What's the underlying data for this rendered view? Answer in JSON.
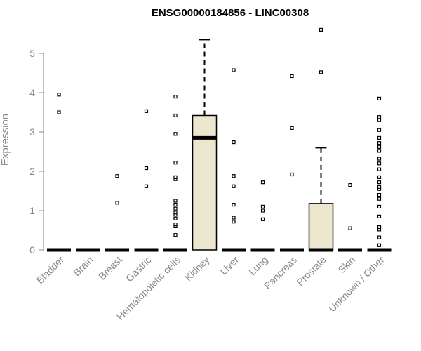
{
  "chart_data": {
    "type": "box",
    "title": "ENSG00000184856 - LINC00308",
    "xlabel": "",
    "ylabel": "Expression",
    "ylim": [
      0,
      5.6
    ],
    "yticks": [
      "0",
      "1",
      "2",
      "3",
      "4",
      "5"
    ],
    "grid": false,
    "colors": {
      "box_fill": "#ede6cf",
      "stroke": "#000000",
      "axis_text": "#888888"
    },
    "categories": [
      "Bladder",
      "Brain",
      "Breast",
      "Gastric",
      "Hematopoietic cells",
      "Kidney",
      "Liver",
      "Lung",
      "Pancreas",
      "Prostate",
      "Skin",
      "Unknown / Other"
    ],
    "boxes": [
      {
        "q1": 0,
        "median": 0,
        "q3": 0,
        "whisker_low": 0,
        "whisker_high": 0,
        "outliers": [
          3.5,
          3.95
        ]
      },
      {
        "q1": 0,
        "median": 0,
        "q3": 0,
        "whisker_low": 0,
        "whisker_high": 0,
        "outliers": []
      },
      {
        "q1": 0,
        "median": 0,
        "q3": 0,
        "whisker_low": 0,
        "whisker_high": 0,
        "outliers": [
          1.2,
          1.88
        ]
      },
      {
        "q1": 0,
        "median": 0,
        "q3": 0,
        "whisker_low": 0,
        "whisker_high": 0,
        "outliers": [
          1.62,
          2.08,
          3.53
        ]
      },
      {
        "q1": 0,
        "median": 0,
        "q3": 0,
        "whisker_low": 0,
        "whisker_high": 0,
        "outliers": [
          0.38,
          0.6,
          0.65,
          0.8,
          0.9,
          0.95,
          1.05,
          1.15,
          1.25,
          1.8,
          1.85,
          2.22,
          2.95,
          3.42,
          3.9
        ]
      },
      {
        "q1": 0,
        "median": 2.85,
        "q3": 3.42,
        "whisker_low": 0,
        "whisker_high": 5.35,
        "outliers": []
      },
      {
        "q1": 0,
        "median": 0,
        "q3": 0,
        "whisker_low": 0,
        "whisker_high": 0,
        "outliers": [
          0.72,
          0.82,
          1.15,
          1.62,
          1.88,
          2.74,
          4.57
        ]
      },
      {
        "q1": 0,
        "median": 0,
        "q3": 0,
        "whisker_low": 0,
        "whisker_high": 0,
        "outliers": [
          0.78,
          1.0,
          1.1,
          1.72
        ]
      },
      {
        "q1": 0,
        "median": 0,
        "q3": 0,
        "whisker_low": 0,
        "whisker_high": 0,
        "outliers": [
          1.92,
          3.1,
          4.42
        ]
      },
      {
        "q1": 0,
        "median": 0,
        "q3": 1.18,
        "whisker_low": 0,
        "whisker_high": 2.6,
        "outliers": [
          4.52,
          5.6
        ]
      },
      {
        "q1": 0,
        "median": 0,
        "q3": 0,
        "whisker_low": 0,
        "whisker_high": 0,
        "outliers": [
          0.55,
          1.65
        ]
      },
      {
        "q1": 0,
        "median": 0,
        "q3": 0,
        "whisker_low": 0,
        "whisker_high": 0,
        "outliers": [
          0.12,
          0.32,
          0.52,
          0.58,
          0.85,
          1.1,
          1.3,
          1.4,
          1.55,
          1.6,
          1.72,
          1.85,
          2.05,
          2.2,
          2.32,
          2.52,
          2.62,
          2.72,
          2.85,
          3.05,
          3.3,
          3.38,
          3.85
        ]
      }
    ]
  }
}
